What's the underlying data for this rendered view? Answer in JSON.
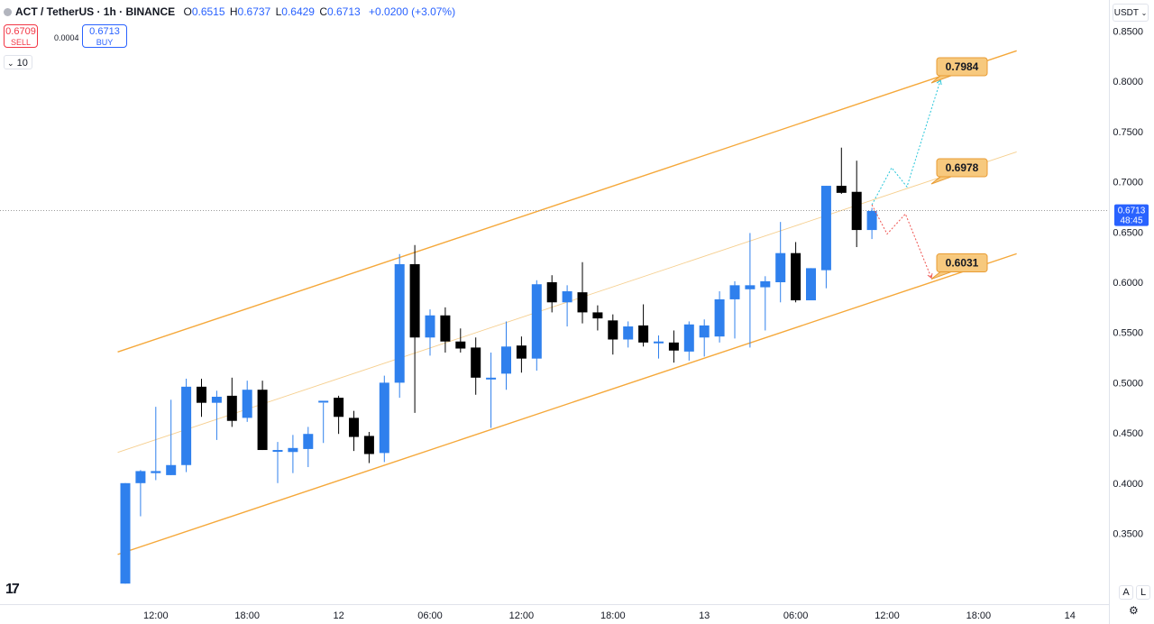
{
  "header": {
    "symbol": "ACT / TetherUS · 1h · BINANCE",
    "o_label": "O",
    "o_value": "0.6515",
    "h_label": "H",
    "h_value": "0.6737",
    "l_label": "L",
    "l_value": "0.6429",
    "c_label": "C",
    "c_value": "0.6713",
    "change": "+0.0200 (+3.07%)"
  },
  "trade": {
    "sell_price": "0.6709",
    "sell_label": "SELL",
    "spread": "0.0004",
    "buy_price": "0.6713",
    "buy_label": "BUY"
  },
  "indicator_count": "10",
  "currency_button": "USDT",
  "logo_text": "17",
  "axis_buttons": {
    "auto": "A",
    "log": "L"
  },
  "settings_icon": "gear-icon",
  "colors": {
    "up": "#2f80ed",
    "down": "#000000",
    "channel": "#f5a83a",
    "label_bg": "#f7c97e",
    "label_border": "#e89c34"
  },
  "chart_data": {
    "type": "candlestick",
    "y_ticks": [
      0.35,
      0.4,
      0.45,
      0.5,
      0.55,
      0.6,
      0.65,
      0.7,
      0.75,
      0.8,
      0.85
    ],
    "y_tick_labels": [
      "0.3500",
      "0.4000",
      "0.4500",
      "0.5000",
      "0.5500",
      "0.6000",
      "0.6500",
      "0.7000",
      "0.7500",
      "0.8000",
      "0.8500"
    ],
    "ylim": [
      0.305,
      0.86
    ],
    "x_labels": [
      {
        "text": "12:00",
        "bar": 2
      },
      {
        "text": "18:00",
        "bar": 8
      },
      {
        "text": "12",
        "bar": 14
      },
      {
        "text": "06:00",
        "bar": 20
      },
      {
        "text": "12:00",
        "bar": 26
      },
      {
        "text": "18:00",
        "bar": 32
      },
      {
        "text": "13",
        "bar": 38
      },
      {
        "text": "06:00",
        "bar": 44
      },
      {
        "text": "12:00",
        "bar": 50
      },
      {
        "text": "18:00",
        "bar": 56
      },
      {
        "text": "14",
        "bar": 62
      }
    ],
    "candles": [
      [
        0.3,
        0.4,
        0.3,
        0.4
      ],
      [
        0.4,
        0.413,
        0.367,
        0.412
      ],
      [
        0.41,
        0.476,
        0.403,
        0.412
      ],
      [
        0.408,
        0.483,
        0.408,
        0.418
      ],
      [
        0.418,
        0.504,
        0.411,
        0.496
      ],
      [
        0.496,
        0.504,
        0.466,
        0.48
      ],
      [
        0.48,
        0.492,
        0.443,
        0.486
      ],
      [
        0.487,
        0.505,
        0.456,
        0.462
      ],
      [
        0.465,
        0.502,
        0.461,
        0.493
      ],
      [
        0.493,
        0.502,
        0.433,
        0.433
      ],
      [
        0.432,
        0.441,
        0.4,
        0.433
      ],
      [
        0.431,
        0.448,
        0.41,
        0.435
      ],
      [
        0.434,
        0.456,
        0.416,
        0.449
      ],
      [
        0.481,
        0.48,
        0.44,
        0.482
      ],
      [
        0.485,
        0.487,
        0.449,
        0.466
      ],
      [
        0.465,
        0.472,
        0.432,
        0.446
      ],
      [
        0.447,
        0.451,
        0.42,
        0.429
      ],
      [
        0.43,
        0.507,
        0.421,
        0.5
      ],
      [
        0.5,
        0.628,
        0.485,
        0.618
      ],
      [
        0.618,
        0.637,
        0.47,
        0.545
      ],
      [
        0.545,
        0.573,
        0.527,
        0.567
      ],
      [
        0.567,
        0.575,
        0.53,
        0.541
      ],
      [
        0.541,
        0.554,
        0.53,
        0.534
      ],
      [
        0.535,
        0.545,
        0.488,
        0.505
      ],
      [
        0.505,
        0.53,
        0.455,
        0.505
      ],
      [
        0.509,
        0.561,
        0.493,
        0.536
      ],
      [
        0.537,
        0.546,
        0.51,
        0.524
      ],
      [
        0.524,
        0.602,
        0.512,
        0.598
      ],
      [
        0.6,
        0.607,
        0.57,
        0.58
      ],
      [
        0.58,
        0.597,
        0.556,
        0.591
      ],
      [
        0.59,
        0.62,
        0.559,
        0.57
      ],
      [
        0.57,
        0.577,
        0.552,
        0.564
      ],
      [
        0.562,
        0.568,
        0.528,
        0.543
      ],
      [
        0.543,
        0.561,
        0.535,
        0.556
      ],
      [
        0.557,
        0.578,
        0.536,
        0.54
      ],
      [
        0.54,
        0.547,
        0.524,
        0.541
      ],
      [
        0.54,
        0.552,
        0.52,
        0.532
      ],
      [
        0.531,
        0.561,
        0.522,
        0.558
      ],
      [
        0.545,
        0.563,
        0.526,
        0.557
      ],
      [
        0.546,
        0.591,
        0.54,
        0.583
      ],
      [
        0.583,
        0.601,
        0.544,
        0.597
      ],
      [
        0.593,
        0.649,
        0.535,
        0.597
      ],
      [
        0.595,
        0.606,
        0.552,
        0.601
      ],
      [
        0.6,
        0.66,
        0.58,
        0.629
      ],
      [
        0.629,
        0.64,
        0.58,
        0.582
      ],
      [
        0.582,
        0.614,
        0.582,
        0.614
      ],
      [
        0.612,
        0.696,
        0.594,
        0.696
      ],
      [
        0.696,
        0.734,
        0.688,
        0.689
      ],
      [
        0.69,
        0.721,
        0.635,
        0.652
      ],
      [
        0.652,
        0.674,
        0.643,
        0.671
      ]
    ],
    "channel_upper": [
      [
        -0.5,
        0.5306
      ],
      [
        58.5,
        0.8304
      ]
    ],
    "channel_middle": [
      [
        -0.5,
        0.4306
      ],
      [
        58.5,
        0.7298
      ]
    ],
    "channel_lower": [
      [
        -0.5,
        0.329
      ],
      [
        58.5,
        0.6284
      ]
    ],
    "bull_path": [
      [
        49,
        0.6771
      ],
      [
        50.3,
        0.714
      ],
      [
        51.3,
        0.695
      ],
      [
        53.5,
        0.801
      ]
    ],
    "bear_path": [
      [
        49,
        0.6771
      ],
      [
        50,
        0.648
      ],
      [
        51.2,
        0.668
      ],
      [
        52.9,
        0.6044
      ]
    ],
    "targets": [
      {
        "label": "0.7984",
        "value": 0.7984,
        "anchor_bar": 52.9
      },
      {
        "label": "0.6978",
        "value": 0.6978,
        "anchor_bar": 52.9
      },
      {
        "label": "0.6031",
        "value": 0.6031,
        "anchor_bar": 52.9
      }
    ],
    "current_price": {
      "label": "0.6713",
      "value": 0.6713,
      "timer": "48:45"
    }
  }
}
